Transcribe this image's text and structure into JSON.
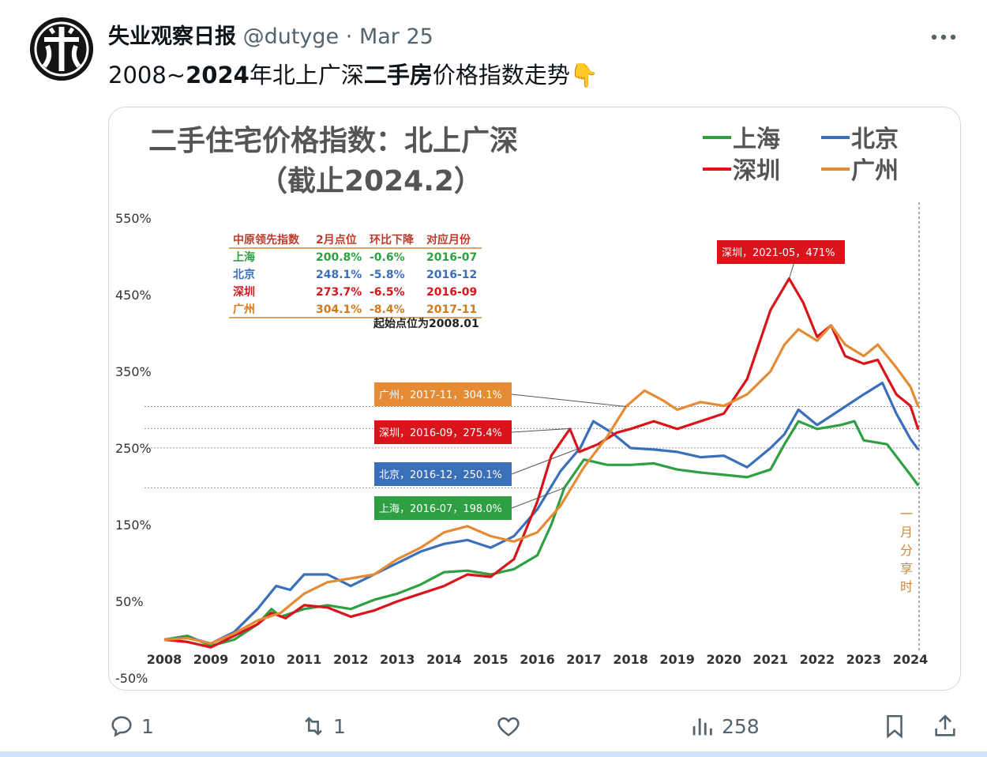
{
  "tweet": {
    "display_name": "失业观察日报",
    "handle": "@dutyge",
    "separator": "·",
    "date": "Mar 25",
    "more_icon": "more-horizontal-icon",
    "text_parts": [
      "2008~",
      "2024",
      "年北上广深",
      "二手房",
      "价格指数走势",
      "👇"
    ]
  },
  "actions": {
    "reply_count": "1",
    "retweet_count": "1",
    "like_count": "",
    "views_count": "258",
    "icons": [
      "reply-icon",
      "retweet-icon",
      "like-icon",
      "views-icon",
      "bookmark-icon",
      "share-icon"
    ]
  },
  "chart_data": {
    "type": "line",
    "title": "二手住宅价格指数：北上广深",
    "subtitle": "（截止2024.2）",
    "legend": [
      "上海",
      "北京",
      "深圳",
      "广州"
    ],
    "legend_placement": "top-right",
    "colors": {
      "上海": "#2ea043",
      "北京": "#3a6fba",
      "深圳": "#d9141b",
      "广州": "#e58a35"
    },
    "ylim": [
      -50,
      550
    ],
    "y_ticks": [
      "550%",
      "450%",
      "350%",
      "250%",
      "150%",
      "50%",
      "-50%"
    ],
    "x_ticks": [
      "2008",
      "2009",
      "2010",
      "2011",
      "2012",
      "2013",
      "2014",
      "2015",
      "2016",
      "2017",
      "2018",
      "2019",
      "2020",
      "2021",
      "2022",
      "2023",
      "2024"
    ],
    "series": [
      {
        "name": "上海",
        "points": [
          [
            2008.0,
            0
          ],
          [
            2008.5,
            5
          ],
          [
            2009.0,
            -8
          ],
          [
            2009.5,
            0
          ],
          [
            2010.0,
            20
          ],
          [
            2010.3,
            40
          ],
          [
            2010.5,
            30
          ],
          [
            2011.0,
            40
          ],
          [
            2011.5,
            45
          ],
          [
            2012.0,
            40
          ],
          [
            2012.5,
            52
          ],
          [
            2013.0,
            60
          ],
          [
            2013.5,
            72
          ],
          [
            2014.0,
            88
          ],
          [
            2014.5,
            90
          ],
          [
            2015.0,
            85
          ],
          [
            2015.5,
            92
          ],
          [
            2016.0,
            110
          ],
          [
            2016.3,
            150
          ],
          [
            2016.58,
            198
          ],
          [
            2017.0,
            235
          ],
          [
            2017.5,
            228
          ],
          [
            2018.0,
            228
          ],
          [
            2018.5,
            230
          ],
          [
            2019.0,
            222
          ],
          [
            2019.5,
            218
          ],
          [
            2020.0,
            215
          ],
          [
            2020.5,
            212
          ],
          [
            2021.0,
            222
          ],
          [
            2021.3,
            255
          ],
          [
            2021.6,
            285
          ],
          [
            2022.0,
            275
          ],
          [
            2022.5,
            280
          ],
          [
            2022.8,
            285
          ],
          [
            2023.0,
            260
          ],
          [
            2023.5,
            255
          ],
          [
            2024.0,
            215
          ],
          [
            2024.17,
            201
          ]
        ]
      },
      {
        "name": "北京",
        "points": [
          [
            2008.0,
            0
          ],
          [
            2008.5,
            3
          ],
          [
            2009.0,
            -5
          ],
          [
            2009.5,
            10
          ],
          [
            2010.0,
            40
          ],
          [
            2010.4,
            70
          ],
          [
            2010.7,
            65
          ],
          [
            2011.0,
            85
          ],
          [
            2011.5,
            85
          ],
          [
            2012.0,
            70
          ],
          [
            2012.5,
            85
          ],
          [
            2013.0,
            100
          ],
          [
            2013.5,
            115
          ],
          [
            2014.0,
            125
          ],
          [
            2014.5,
            130
          ],
          [
            2015.0,
            120
          ],
          [
            2015.5,
            135
          ],
          [
            2016.0,
            170
          ],
          [
            2016.5,
            220
          ],
          [
            2016.92,
            250
          ],
          [
            2017.2,
            285
          ],
          [
            2017.6,
            270
          ],
          [
            2018.0,
            250
          ],
          [
            2018.5,
            248
          ],
          [
            2019.0,
            245
          ],
          [
            2019.5,
            238
          ],
          [
            2020.0,
            240
          ],
          [
            2020.5,
            225
          ],
          [
            2021.0,
            250
          ],
          [
            2021.3,
            268
          ],
          [
            2021.6,
            300
          ],
          [
            2022.0,
            280
          ],
          [
            2022.5,
            300
          ],
          [
            2023.0,
            320
          ],
          [
            2023.4,
            335
          ],
          [
            2023.7,
            295
          ],
          [
            2024.0,
            262
          ],
          [
            2024.17,
            248
          ]
        ]
      },
      {
        "name": "深圳",
        "points": [
          [
            2008.0,
            0
          ],
          [
            2008.5,
            -3
          ],
          [
            2009.0,
            -10
          ],
          [
            2009.5,
            5
          ],
          [
            2010.0,
            20
          ],
          [
            2010.3,
            35
          ],
          [
            2010.6,
            28
          ],
          [
            2011.0,
            45
          ],
          [
            2011.5,
            42
          ],
          [
            2012.0,
            30
          ],
          [
            2012.5,
            38
          ],
          [
            2013.0,
            50
          ],
          [
            2013.5,
            60
          ],
          [
            2014.0,
            70
          ],
          [
            2014.5,
            85
          ],
          [
            2015.0,
            82
          ],
          [
            2015.5,
            105
          ],
          [
            2016.0,
            180
          ],
          [
            2016.3,
            240
          ],
          [
            2016.7,
            275
          ],
          [
            2016.9,
            245
          ],
          [
            2017.3,
            255
          ],
          [
            2017.7,
            270
          ],
          [
            2018.0,
            275
          ],
          [
            2018.5,
            285
          ],
          [
            2019.0,
            275
          ],
          [
            2019.5,
            285
          ],
          [
            2020.0,
            295
          ],
          [
            2020.5,
            340
          ],
          [
            2021.0,
            430
          ],
          [
            2021.4,
            471
          ],
          [
            2021.7,
            440
          ],
          [
            2022.0,
            395
          ],
          [
            2022.3,
            410
          ],
          [
            2022.6,
            370
          ],
          [
            2023.0,
            360
          ],
          [
            2023.3,
            365
          ],
          [
            2023.7,
            320
          ],
          [
            2024.0,
            305
          ],
          [
            2024.17,
            274
          ]
        ]
      },
      {
        "name": "广州",
        "points": [
          [
            2008.0,
            0
          ],
          [
            2008.5,
            2
          ],
          [
            2009.0,
            -5
          ],
          [
            2009.5,
            8
          ],
          [
            2010.0,
            25
          ],
          [
            2010.5,
            35
          ],
          [
            2011.0,
            60
          ],
          [
            2011.5,
            75
          ],
          [
            2012.0,
            80
          ],
          [
            2012.5,
            85
          ],
          [
            2013.0,
            105
          ],
          [
            2013.5,
            120
          ],
          [
            2014.0,
            140
          ],
          [
            2014.5,
            148
          ],
          [
            2015.0,
            135
          ],
          [
            2015.5,
            128
          ],
          [
            2016.0,
            140
          ],
          [
            2016.5,
            175
          ],
          [
            2017.0,
            225
          ],
          [
            2017.5,
            265
          ],
          [
            2017.9,
            304
          ],
          [
            2018.3,
            325
          ],
          [
            2018.7,
            312
          ],
          [
            2019.0,
            300
          ],
          [
            2019.5,
            310
          ],
          [
            2020.0,
            305
          ],
          [
            2020.5,
            320
          ],
          [
            2021.0,
            350
          ],
          [
            2021.3,
            385
          ],
          [
            2021.6,
            405
          ],
          [
            2022.0,
            390
          ],
          [
            2022.3,
            410
          ],
          [
            2022.6,
            385
          ],
          [
            2023.0,
            370
          ],
          [
            2023.3,
            385
          ],
          [
            2023.7,
            355
          ],
          [
            2024.0,
            330
          ],
          [
            2024.17,
            304
          ]
        ]
      }
    ],
    "callouts": [
      {
        "series": "深圳",
        "label": "深圳，2021-05，471%",
        "x": 2021.4,
        "y": 471
      },
      {
        "series": "广州",
        "label": "广州，2017-11，304.1%",
        "x": 2017.9,
        "y": 304.1
      },
      {
        "series": "深圳",
        "label": "深圳，2016-09，275.4%",
        "x": 2016.7,
        "y": 275.4
      },
      {
        "series": "北京",
        "label": "北京，2016-12，250.1%",
        "x": 2016.92,
        "y": 250.1
      },
      {
        "series": "上海",
        "label": "上海，2016-07，198.0%",
        "x": 2016.58,
        "y": 198.0
      }
    ],
    "reference_lines": [
      304.1,
      275.4,
      250.1,
      198.0
    ],
    "table": {
      "header": [
        "中原领先指数",
        "2月点位",
        "环比下降",
        "对应月份"
      ],
      "rows": [
        [
          "上海",
          "200.8%",
          "-0.6%",
          "2016-07"
        ],
        [
          "北京",
          "248.1%",
          "-5.8%",
          "2016-12"
        ],
        [
          "深圳",
          "273.7%",
          "-6.5%",
          "2016-09"
        ],
        [
          "广州",
          "304.1%",
          "-8.4%",
          "2017-11"
        ]
      ],
      "note": "起始点位为2008.01"
    },
    "side_note": [
      "一",
      "月",
      "分",
      "享",
      "时"
    ]
  }
}
